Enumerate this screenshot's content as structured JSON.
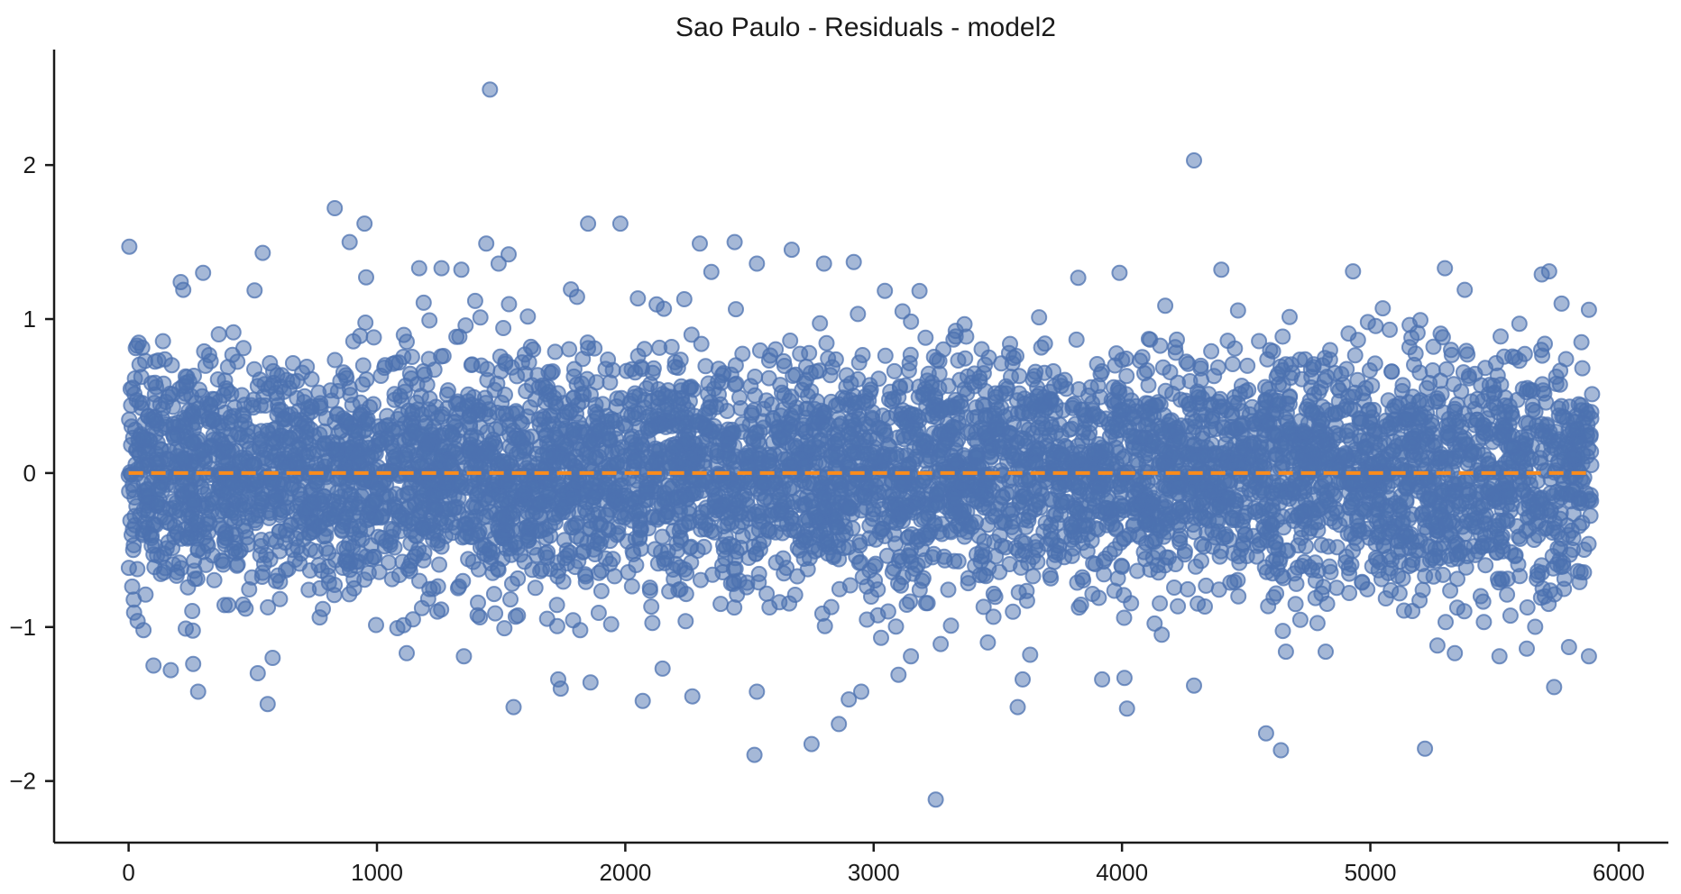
{
  "chart_data": {
    "type": "scatter",
    "title": "Sao Paulo - Residuals - model2",
    "xlabel": "",
    "ylabel": "",
    "xlim": [
      -300,
      6200
    ],
    "ylim": [
      -2.4,
      2.75
    ],
    "xticks": [
      0,
      1000,
      2000,
      3000,
      4000,
      5000,
      6000
    ],
    "xtick_labels": [
      "0",
      "1000",
      "2000",
      "3000",
      "4000",
      "5000",
      "6000"
    ],
    "yticks": [
      -2,
      -1,
      0,
      1,
      2
    ],
    "ytick_labels": [
      "−2",
      "−1",
      "0",
      "1",
      "2"
    ],
    "grid": false,
    "n_observations": 5896,
    "series": [
      {
        "type": "scatter",
        "color": "#4c72b0",
        "alpha": 0.5,
        "marker": "circle",
        "points": [
          [
            3,
            1.47
          ],
          [
            1455,
            2.49
          ],
          [
            4290,
            2.03
          ],
          [
            3250,
            -2.12
          ],
          [
            2520,
            -1.83
          ],
          [
            5220,
            -1.79
          ],
          [
            4640,
            -1.8
          ],
          [
            4580,
            -1.69
          ],
          [
            2900,
            -1.47
          ],
          [
            2950,
            -1.42
          ],
          [
            2750,
            -1.76
          ],
          [
            2860,
            -1.63
          ],
          [
            540,
            1.43
          ],
          [
            830,
            1.72
          ],
          [
            950,
            1.62
          ],
          [
            890,
            1.5
          ],
          [
            1440,
            1.49
          ],
          [
            1490,
            1.36
          ],
          [
            1530,
            1.42
          ],
          [
            1850,
            1.62
          ],
          [
            1980,
            1.62
          ],
          [
            2300,
            1.49
          ],
          [
            2440,
            1.5
          ],
          [
            2670,
            1.45
          ],
          [
            2920,
            1.37
          ],
          [
            2800,
            1.36
          ],
          [
            2530,
            1.36
          ],
          [
            4930,
            1.31
          ],
          [
            4400,
            1.32
          ],
          [
            5300,
            1.33
          ],
          [
            5720,
            1.31
          ],
          [
            5690,
            1.29
          ],
          [
            5380,
            1.19
          ],
          [
            3990,
            1.3
          ],
          [
            1260,
            1.33
          ],
          [
            1170,
            1.33
          ],
          [
            1340,
            1.32
          ],
          [
            300,
            1.3
          ],
          [
            220,
            1.19
          ],
          [
            210,
            1.24
          ],
          [
            230,
            -1.01
          ],
          [
            280,
            -1.42
          ],
          [
            260,
            -1.24
          ],
          [
            170,
            -1.28
          ],
          [
            60,
            -1.02
          ],
          [
            100,
            -1.25
          ],
          [
            520,
            -1.3
          ],
          [
            560,
            -1.5
          ],
          [
            580,
            -1.2
          ],
          [
            1120,
            -1.17
          ],
          [
            1350,
            -1.19
          ],
          [
            1550,
            -1.52
          ],
          [
            1730,
            -1.34
          ],
          [
            1740,
            -1.4
          ],
          [
            1860,
            -1.36
          ],
          [
            2070,
            -1.48
          ],
          [
            2150,
            -1.27
          ],
          [
            2270,
            -1.45
          ],
          [
            2530,
            -1.42
          ],
          [
            3100,
            -1.31
          ],
          [
            3150,
            -1.19
          ],
          [
            3580,
            -1.52
          ],
          [
            3600,
            -1.34
          ],
          [
            3630,
            -1.18
          ],
          [
            3920,
            -1.34
          ],
          [
            4010,
            -1.33
          ],
          [
            4020,
            -1.53
          ],
          [
            4160,
            -1.05
          ],
          [
            4290,
            -1.38
          ],
          [
            4660,
            -1.16
          ],
          [
            4820,
            -1.16
          ],
          [
            5520,
            -1.19
          ],
          [
            5630,
            -1.14
          ],
          [
            5740,
            -1.39
          ],
          [
            5800,
            -1.13
          ],
          [
            5880,
            -1.19
          ],
          [
            5340,
            -1.17
          ],
          [
            5270,
            -1.12
          ],
          [
            3030,
            -1.07
          ],
          [
            3460,
            -1.1
          ],
          [
            3270,
            -1.11
          ],
          [
            5880,
            1.06
          ],
          [
            5850,
            0.85
          ],
          [
            5600,
            0.97
          ],
          [
            5770,
            1.1
          ],
          [
            5190,
            0.91
          ],
          [
            5050,
            1.07
          ],
          [
            4990,
            0.98
          ]
        ]
      }
    ],
    "lines": [
      {
        "type": "dashed",
        "color": "#ff8c1a",
        "x": [
          0,
          5896
        ],
        "y": [
          0,
          0
        ]
      }
    ]
  }
}
